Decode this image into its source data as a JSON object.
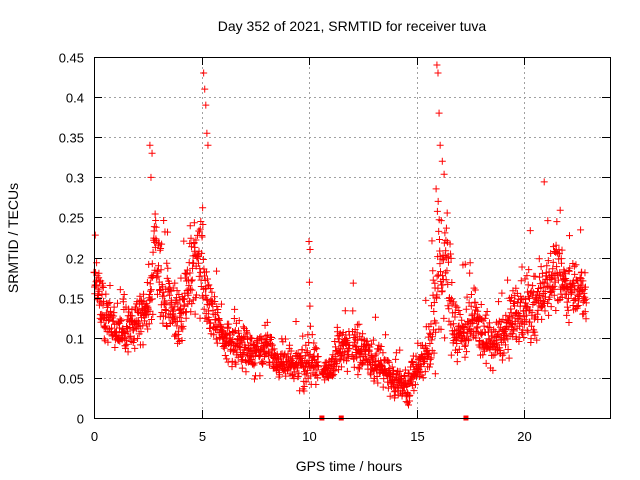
{
  "chart_data": {
    "type": "scatter",
    "title": "Day 352 of 2021, SRMTID for receiver tuva",
    "xlabel": "GPS time / hours",
    "ylabel": "SRMTID / TECUs",
    "xlim": [
      0,
      24
    ],
    "ylim": [
      0,
      0.45
    ],
    "xticks": [
      0,
      5,
      10,
      15,
      20
    ],
    "xtick_labels": [
      "0",
      "5",
      "10",
      "15",
      "20"
    ],
    "yticks": [
      0,
      0.05,
      0.1,
      0.15,
      0.2,
      0.25,
      0.3,
      0.35,
      0.4,
      0.45
    ],
    "ytick_labels": [
      "0",
      "0.05",
      "0.1",
      "0.15",
      "0.2",
      "0.25",
      "0.3",
      "0.35",
      "0.4",
      "0.45"
    ],
    "grid": true,
    "marker": "plus",
    "color": "#ff0000",
    "series": [
      {
        "name": "SRMTID",
        "profile_x": [
          0,
          0.3,
          0.6,
          1.0,
          1.5,
          2.0,
          2.5,
          2.8,
          3.2,
          3.6,
          4.0,
          4.5,
          5.0,
          5.3,
          5.7,
          6.0,
          6.5,
          7.0,
          7.5,
          8.0,
          8.5,
          9.0,
          9.5,
          10.0,
          10.6,
          11.0,
          11.5,
          12.0,
          12.5,
          13.0,
          13.5,
          14.0,
          14.5,
          15.0,
          15.5,
          15.9,
          16.3,
          16.7,
          17.0,
          17.5,
          18.0,
          18.5,
          19.0,
          19.5,
          20.0,
          20.5,
          21.0,
          21.5,
          22.0,
          22.5,
          22.9
        ],
        "profile_median": [
          0.17,
          0.15,
          0.13,
          0.11,
          0.11,
          0.12,
          0.13,
          0.22,
          0.15,
          0.14,
          0.13,
          0.17,
          0.2,
          0.14,
          0.12,
          0.1,
          0.09,
          0.09,
          0.08,
          0.09,
          0.07,
          0.065,
          0.065,
          0.07,
          0.06,
          0.06,
          0.09,
          0.09,
          0.08,
          0.07,
          0.06,
          0.05,
          0.04,
          0.06,
          0.08,
          0.15,
          0.2,
          0.13,
          0.1,
          0.12,
          0.11,
          0.09,
          0.1,
          0.12,
          0.14,
          0.13,
          0.17,
          0.18,
          0.16,
          0.17,
          0.14
        ],
        "profile_spread": [
          0.03,
          0.05,
          0.04,
          0.035,
          0.035,
          0.04,
          0.05,
          0.09,
          0.05,
          0.05,
          0.05,
          0.07,
          0.1,
          0.04,
          0.04,
          0.03,
          0.03,
          0.03,
          0.03,
          0.03,
          0.025,
          0.025,
          0.025,
          0.05,
          0.02,
          0.02,
          0.04,
          0.035,
          0.03,
          0.03,
          0.03,
          0.03,
          0.03,
          0.03,
          0.04,
          0.11,
          0.11,
          0.06,
          0.05,
          0.04,
          0.04,
          0.035,
          0.035,
          0.045,
          0.06,
          0.05,
          0.05,
          0.05,
          0.04,
          0.04,
          0.04
        ],
        "spikes": [
          {
            "x": 2.6,
            "y": 0.34
          },
          {
            "x": 2.7,
            "y": 0.33
          },
          {
            "x": 2.65,
            "y": 0.3
          },
          {
            "x": 5.1,
            "y": 0.43
          },
          {
            "x": 5.15,
            "y": 0.41
          },
          {
            "x": 5.2,
            "y": 0.39
          },
          {
            "x": 5.25,
            "y": 0.355
          },
          {
            "x": 5.3,
            "y": 0.34
          },
          {
            "x": 10.0,
            "y": 0.22
          },
          {
            "x": 10.05,
            "y": 0.21
          },
          {
            "x": 15.95,
            "y": 0.44
          },
          {
            "x": 16.0,
            "y": 0.43
          },
          {
            "x": 16.05,
            "y": 0.38
          },
          {
            "x": 16.1,
            "y": 0.34
          },
          {
            "x": 16.2,
            "y": 0.32
          }
        ],
        "baseline_marks_x": [
          10.6,
          11.5,
          17.3
        ]
      }
    ]
  }
}
